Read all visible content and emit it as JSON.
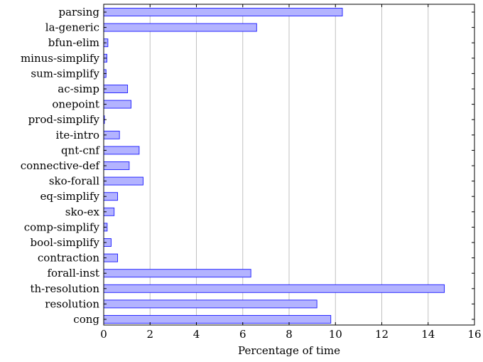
{
  "chart_data": {
    "type": "bar",
    "orientation": "horizontal",
    "title": "",
    "xlabel": "Percentage of time",
    "ylabel": "",
    "xlim": [
      0,
      16
    ],
    "xticks": [
      "0",
      "2",
      "4",
      "6",
      "8",
      "10",
      "12",
      "14",
      "16"
    ],
    "grid": "vertical major gridlines",
    "bar_color": "#b3b3ff",
    "bar_edge_color": "#1a1aff",
    "categories": [
      "parsing",
      "la-generic",
      "bfun-elim",
      "minus-simplify",
      "sum-simplify",
      "ac-simp",
      "onepoint",
      "prod-simplify",
      "ite-intro",
      "qnt-cnf",
      "connective-def",
      "sko-forall",
      "eq-simplify",
      "sko-ex",
      "comp-simplify",
      "bool-simplify",
      "contraction",
      "forall-inst",
      "th-resolution",
      "resolution",
      "cong"
    ],
    "values": [
      10.3,
      6.6,
      0.18,
      0.14,
      0.1,
      1.03,
      1.18,
      0.03,
      0.68,
      1.53,
      1.1,
      1.7,
      0.6,
      0.45,
      0.15,
      0.32,
      0.6,
      6.35,
      14.7,
      9.2,
      9.8
    ]
  }
}
